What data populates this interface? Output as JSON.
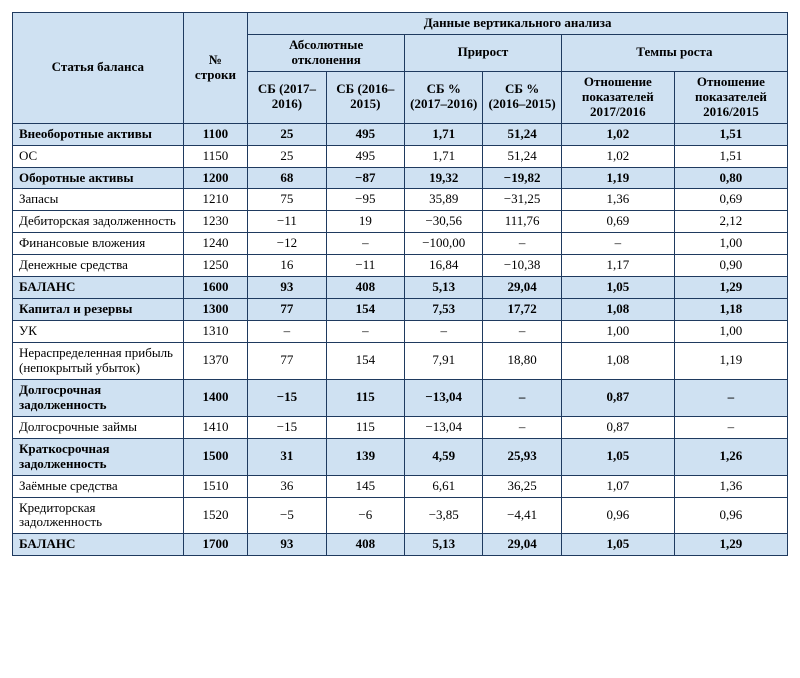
{
  "colors": {
    "header_bg": "#cfe1f2",
    "border": "#1f3a5f",
    "row_plain_bg": "#ffffff",
    "text": "#000000"
  },
  "typography": {
    "family": "Times New Roman",
    "base_size_pt": 10
  },
  "table": {
    "type": "table",
    "headers": {
      "col_label": "Статья баланса",
      "col_num": "№ строки",
      "group_top": "Данные вертикального анализа",
      "group_abs": "Абсолютные отклонения",
      "group_growth": "Прирост",
      "group_rate": "Темпы роста",
      "abs_1": "СБ (2017–2016)",
      "abs_2": "СБ (2016–2015)",
      "growth_1": "СБ % (2017–2016)",
      "growth_2": "СБ % (2016–2015)",
      "rate_1": "Отношение показателей 2017/2016",
      "rate_2": "Отношение показателей 2016/2015"
    },
    "rows": [
      {
        "bold": true,
        "label": "Внеоборотные активы",
        "num": "1100",
        "c": [
          "25",
          "495",
          "1,71",
          "51,24",
          "1,02",
          "1,51"
        ]
      },
      {
        "bold": false,
        "label": "ОС",
        "num": "1150",
        "c": [
          "25",
          "495",
          "1,71",
          "51,24",
          "1,02",
          "1,51"
        ]
      },
      {
        "bold": true,
        "label": "Оборотные активы",
        "num": "1200",
        "c": [
          "68",
          "−87",
          "19,32",
          "−19,82",
          "1,19",
          "0,80"
        ]
      },
      {
        "bold": false,
        "label": "Запасы",
        "num": "1210",
        "c": [
          "75",
          "−95",
          "35,89",
          "−31,25",
          "1,36",
          "0,69"
        ]
      },
      {
        "bold": false,
        "label": "Дебиторская задолженность",
        "num": "1230",
        "c": [
          "−11",
          "19",
          "−30,56",
          "111,76",
          "0,69",
          "2,12"
        ]
      },
      {
        "bold": false,
        "label": "Финансовые вложения",
        "num": "1240",
        "c": [
          "−12",
          "–",
          "−100,00",
          "–",
          "–",
          "1,00"
        ]
      },
      {
        "bold": false,
        "label": "Денежные средства",
        "num": "1250",
        "c": [
          "16",
          "−11",
          "16,84",
          "−10,38",
          "1,17",
          "0,90"
        ]
      },
      {
        "bold": true,
        "label": "БАЛАНС",
        "num": "1600",
        "c": [
          "93",
          "408",
          "5,13",
          "29,04",
          "1,05",
          "1,29"
        ]
      },
      {
        "bold": true,
        "label": "Капитал и резервы",
        "num": "1300",
        "c": [
          "77",
          "154",
          "7,53",
          "17,72",
          "1,08",
          "1,18"
        ]
      },
      {
        "bold": false,
        "label": "УК",
        "num": "1310",
        "c": [
          "–",
          "–",
          "–",
          "–",
          "1,00",
          "1,00"
        ]
      },
      {
        "bold": false,
        "label": "Нераспределенная прибыль (непокрытый убыток)",
        "num": "1370",
        "c": [
          "77",
          "154",
          "7,91",
          "18,80",
          "1,08",
          "1,19"
        ]
      },
      {
        "bold": true,
        "label": "Долгосрочная задолженность",
        "num": "1400",
        "c": [
          "−15",
          "115",
          "−13,04",
          "–",
          "0,87",
          "–"
        ]
      },
      {
        "bold": false,
        "label": "Долгосрочные займы",
        "num": "1410",
        "c": [
          "−15",
          "115",
          "−13,04",
          "–",
          "0,87",
          "–"
        ]
      },
      {
        "bold": true,
        "label": "Краткосрочная задолженность",
        "num": "1500",
        "c": [
          "31",
          "139",
          "4,59",
          "25,93",
          "1,05",
          "1,26"
        ]
      },
      {
        "bold": false,
        "label": "Заёмные средства",
        "num": "1510",
        "c": [
          "36",
          "145",
          "6,61",
          "36,25",
          "1,07",
          "1,36"
        ]
      },
      {
        "bold": false,
        "label": "Кредиторская задолженность",
        "num": "1520",
        "c": [
          "−5",
          "−6",
          "−3,85",
          "−4,41",
          "0,96",
          "0,96"
        ]
      },
      {
        "bold": true,
        "label": "БАЛАНС",
        "num": "1700",
        "c": [
          "93",
          "408",
          "5,13",
          "29,04",
          "1,05",
          "1,29"
        ]
      }
    ]
  }
}
